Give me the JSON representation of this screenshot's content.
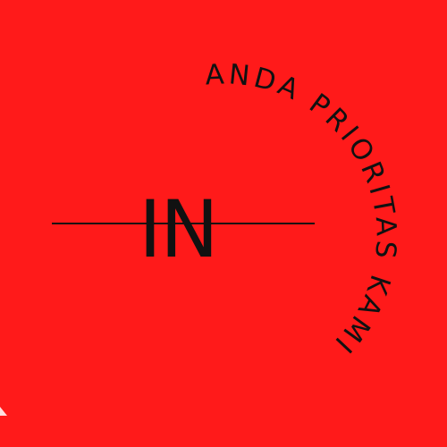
{
  "logo": {
    "monogram": "IN",
    "tagline": "ANDA PRIORITAS KAMI"
  },
  "colors": {
    "background": "#ff1a1a",
    "ink": "#111111"
  }
}
